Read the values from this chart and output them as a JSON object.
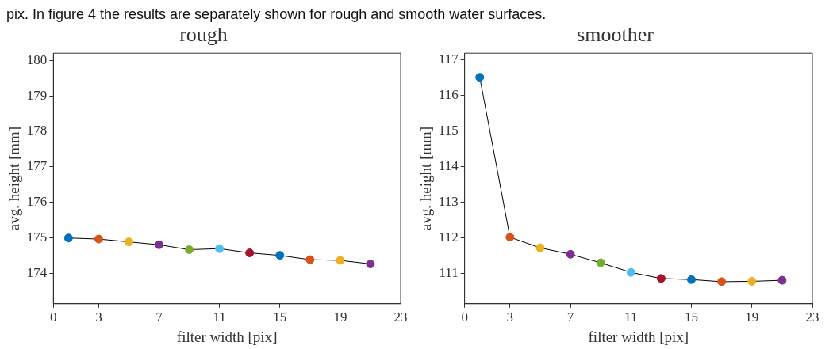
{
  "chart_data": [
    {
      "type": "line",
      "title": "rough",
      "xlabel": "filter width [pix]",
      "ylabel": "avg. height [mm]",
      "annotations": [
        "pix. In figure 4 the results are separately shown for rough and smooth water surfaces."
      ],
      "x": [
        1,
        3,
        5,
        7,
        9,
        11,
        13,
        15,
        17,
        19,
        21
      ],
      "series": [
        {
          "color": "#000000",
          "colors": [
            "#0072bd",
            "#d95319",
            "#edb120",
            "#7e2f8e",
            "#77ac30",
            "#4dbeee",
            "#a2142f",
            "#0072bd",
            "#d95319",
            "#edb120",
            "#7e2f8e"
          ],
          "values": [
            175.0,
            174.97,
            174.89,
            174.81,
            174.67,
            174.7,
            174.58,
            174.51,
            174.39,
            174.37,
            174.27
          ]
        }
      ],
      "xlim": [
        0,
        23
      ],
      "xticks": [
        0,
        3,
        7,
        11,
        15,
        19,
        23
      ],
      "ylim": [
        173.15,
        180.2
      ],
      "yticks": [
        174,
        175,
        176,
        177,
        178,
        179,
        180
      ],
      "grid": false,
      "legend": false,
      "marker": "circle",
      "line_style": "solid"
    },
    {
      "type": "line",
      "title": "smoother",
      "xlabel": "filter width [pix]",
      "ylabel": "avg. height [mm]",
      "x": [
        1,
        3,
        5,
        7,
        9,
        11,
        13,
        15,
        17,
        19,
        21
      ],
      "series": [
        {
          "color": "#000000",
          "colors": [
            "#0072bd",
            "#d95319",
            "#edb120",
            "#7e2f8e",
            "#77ac30",
            "#4dbeee",
            "#a2142f",
            "#0072bd",
            "#d95319",
            "#edb120",
            "#7e2f8e"
          ],
          "values": [
            116.5,
            112.01,
            111.71,
            111.53,
            111.29,
            111.02,
            110.85,
            110.82,
            110.76,
            110.77,
            110.8
          ]
        }
      ],
      "xlim": [
        0,
        23
      ],
      "xticks": [
        0,
        3,
        7,
        11,
        15,
        19,
        23
      ],
      "ylim": [
        110.14,
        117.18
      ],
      "yticks": [
        111,
        112,
        113,
        114,
        115,
        116,
        117
      ],
      "grid": false,
      "legend": false,
      "marker": "circle",
      "line_style": "solid"
    }
  ]
}
